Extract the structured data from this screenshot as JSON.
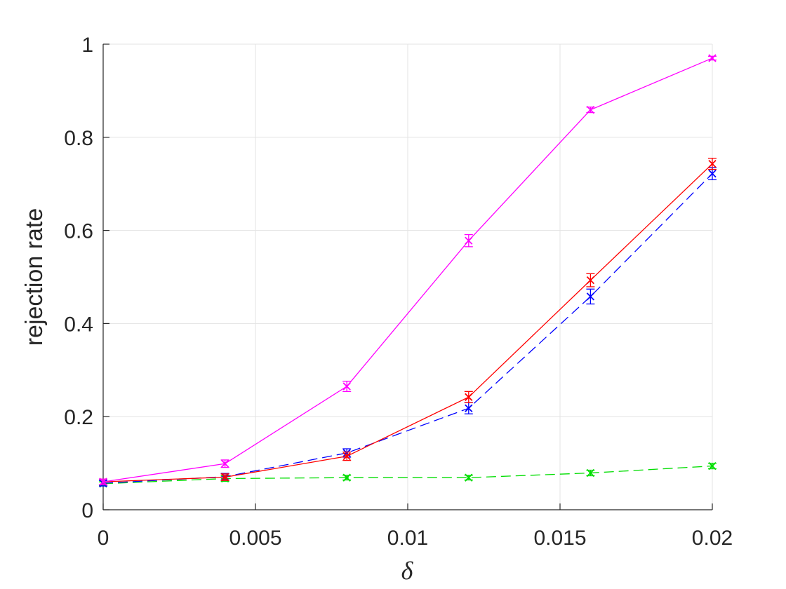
{
  "chart_data": {
    "type": "line",
    "title": "",
    "xlabel": "δ",
    "ylabel": "rejection rate",
    "xlim": [
      0,
      0.02
    ],
    "ylim": [
      0,
      1
    ],
    "grid": true,
    "legend": "none",
    "x": [
      0,
      0.004,
      0.008,
      0.012,
      0.016,
      0.02
    ],
    "x_ticks": [
      0,
      0.005,
      0.01,
      0.015,
      0.02
    ],
    "x_tick_labels": [
      "0",
      "0.005",
      "0.01",
      "0.015",
      "0.02"
    ],
    "y_ticks": [
      0,
      0.2,
      0.4,
      0.6,
      0.8,
      1
    ],
    "y_tick_labels": [
      "0",
      "0.2",
      "0.4",
      "0.6",
      "0.8",
      "1"
    ],
    "series": [
      {
        "color": "#ff00ff",
        "line_style": "solid",
        "marker": "x",
        "values": [
          0.06,
          0.099,
          0.265,
          0.578,
          0.859,
          0.97
        ],
        "errors": [
          0.006,
          0.008,
          0.011,
          0.013,
          0.006,
          0.004
        ]
      },
      {
        "color": "#ff0000",
        "line_style": "solid",
        "marker": "x",
        "values": [
          0.06,
          0.07,
          0.115,
          0.242,
          0.493,
          0.743
        ],
        "errors": [
          0.006,
          0.007,
          0.009,
          0.012,
          0.014,
          0.012
        ]
      },
      {
        "color": "#0000ff",
        "line_style": "dashed",
        "marker": "x",
        "values": [
          0.057,
          0.071,
          0.122,
          0.218,
          0.458,
          0.722
        ],
        "errors": [
          0.006,
          0.007,
          0.009,
          0.012,
          0.016,
          0.013
        ]
      },
      {
        "color": "#00dd00",
        "line_style": "dashed",
        "marker": "x",
        "values": [
          0.056,
          0.067,
          0.069,
          0.069,
          0.079,
          0.094
        ],
        "errors": [
          0.004,
          0.006,
          0.005,
          0.005,
          0.006,
          0.006
        ]
      }
    ]
  }
}
